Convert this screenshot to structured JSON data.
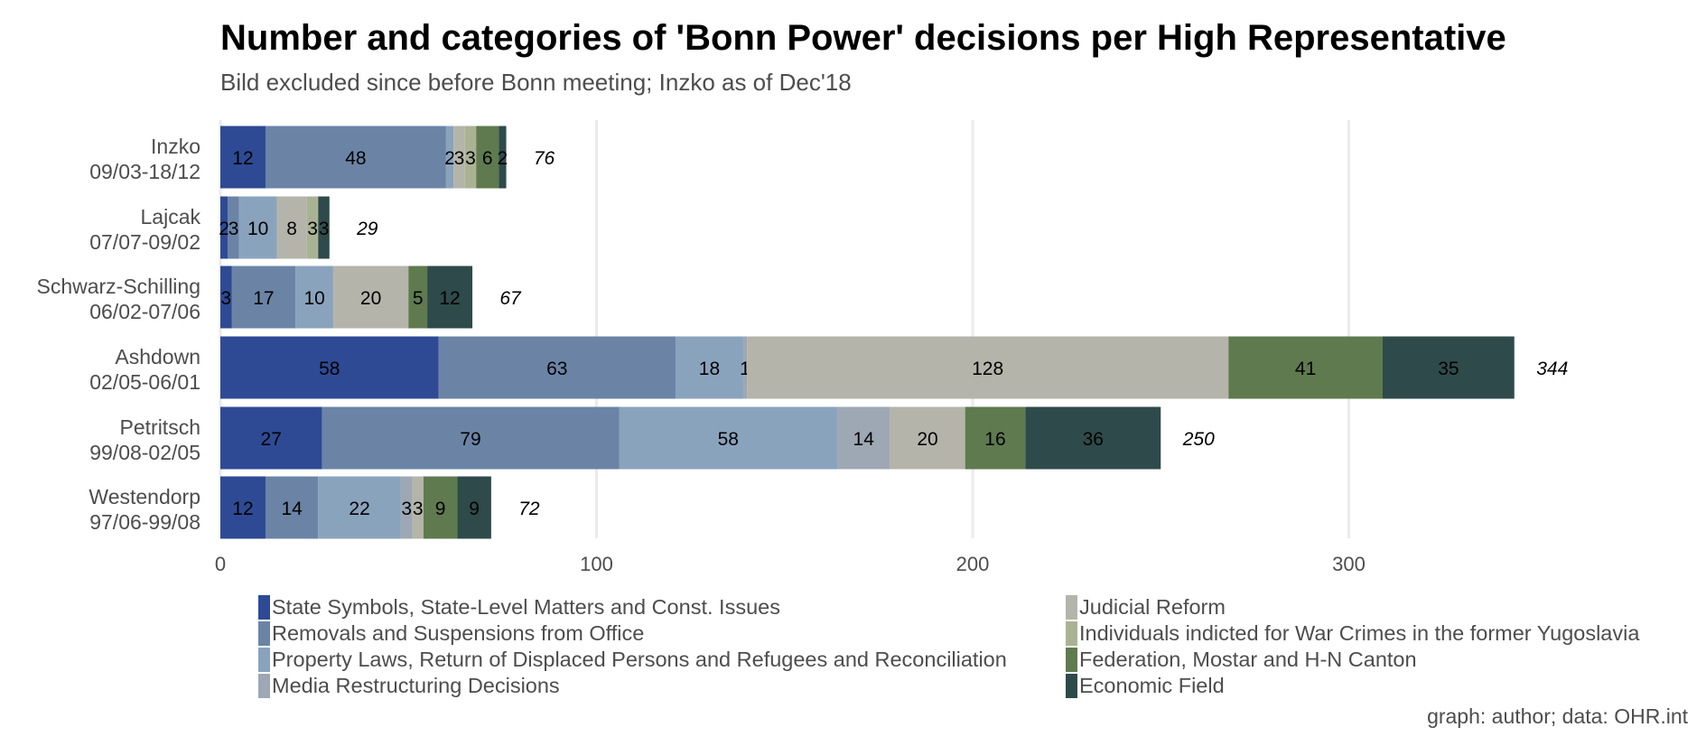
{
  "chart_data": {
    "type": "bar",
    "orientation": "horizontal",
    "stacked": true,
    "title": "Number and categories of 'Bonn Power' decisions per High Representative",
    "subtitle": "Bild excluded since before Bonn meeting; Inzko as of Dec'18",
    "caption": "graph: author; data: OHR.int",
    "xlim": [
      0,
      350
    ],
    "x_ticks": [
      0,
      100,
      200,
      300
    ],
    "grid": "vertical major",
    "legend_position": "bottom",
    "categories": [
      "Inzko\n09/03-18/12",
      "Lajcak\n07/07-09/02",
      "Schwarz-Schilling\n06/02-07/06",
      "Ashdown\n02/05-06/01",
      "Petritsch\n99/08-02/05",
      "Westendorp\n97/06-99/08"
    ],
    "totals": [
      76,
      29,
      67,
      344,
      250,
      72
    ],
    "series": [
      {
        "name": "State Symbols, State-Level Matters and Const. Issues",
        "color": "#2e4a94",
        "values": [
          12,
          2,
          3,
          58,
          27,
          12
        ]
      },
      {
        "name": "Removals and Suspensions from Office",
        "color": "#6b84a6",
        "values": [
          48,
          3,
          17,
          63,
          79,
          14
        ]
      },
      {
        "name": "Property Laws, Return of Displaced Persons and Refugees and Reconciliation",
        "color": "#8aa3bd",
        "values": [
          2,
          10,
          10,
          18,
          58,
          22
        ]
      },
      {
        "name": "Media Restructuring Decisions",
        "color": "#9ea8b4",
        "values": [
          0,
          0,
          0,
          1,
          14,
          3
        ]
      },
      {
        "name": "Judicial Reform",
        "color": "#b4b4aa",
        "values": [
          3,
          8,
          20,
          128,
          20,
          3
        ]
      },
      {
        "name": "Individuals indicted for War Crimes in the former Yugoslavia",
        "color": "#a9b394",
        "values": [
          3,
          3,
          0,
          0,
          0,
          0
        ]
      },
      {
        "name": "Federation, Mostar and H-N Canton",
        "color": "#5f7a4f",
        "values": [
          6,
          0,
          5,
          41,
          16,
          9
        ]
      },
      {
        "name": "Economic Field",
        "color": "#2f4a4a",
        "values": [
          2,
          3,
          12,
          35,
          36,
          9
        ]
      }
    ]
  }
}
